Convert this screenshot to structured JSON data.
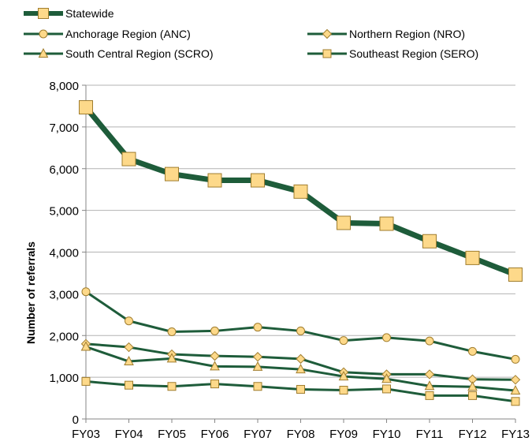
{
  "chart_data": {
    "type": "line",
    "ylabel": "Number of referrals",
    "ylim": [
      0,
      8000
    ],
    "yticks": [
      0,
      1000,
      2000,
      3000,
      4000,
      5000,
      6000,
      7000,
      8000
    ],
    "ytick_labels": [
      "0",
      "1,000",
      "2,000",
      "3,000",
      "4,000",
      "5,000",
      "6,000",
      "7,000",
      "8,000"
    ],
    "grid": "horizontal",
    "legend_position": "top",
    "categories": [
      "FY03",
      "FY04",
      "FY05",
      "FY06",
      "FY07",
      "FY08",
      "FY09",
      "FY10",
      "FY11",
      "FY12",
      "FY13"
    ],
    "series": [
      {
        "name": "Statewide",
        "marker": "square-large",
        "line_color": "#1e5c3a",
        "marker_color": "#fdd98a",
        "values": [
          7470,
          6230,
          5870,
          5720,
          5720,
          5450,
          4700,
          4680,
          4260,
          3860,
          3460
        ]
      },
      {
        "name": "Anchorage Region (ANC)",
        "marker": "circle",
        "line_color": "#1e5c3a",
        "marker_color": "#fdd98a",
        "values": [
          3050,
          2350,
          2090,
          2110,
          2200,
          2110,
          1880,
          1950,
          1870,
          1620,
          1430
        ]
      },
      {
        "name": "Northern Region (NRO)",
        "marker": "diamond",
        "line_color": "#1e5c3a",
        "marker_color": "#fdd98a",
        "values": [
          1800,
          1720,
          1550,
          1510,
          1490,
          1440,
          1120,
          1070,
          1070,
          950,
          940
        ]
      },
      {
        "name": "South Central Region (SCRO)",
        "marker": "triangle",
        "line_color": "#1e5c3a",
        "marker_color": "#fdd98a",
        "values": [
          1730,
          1380,
          1450,
          1260,
          1250,
          1190,
          1020,
          960,
          790,
          770,
          680
        ]
      },
      {
        "name": "Southeast Region (SERO)",
        "marker": "square",
        "line_color": "#1e5c3a",
        "marker_color": "#fdd98a",
        "values": [
          900,
          810,
          780,
          840,
          780,
          710,
          690,
          720,
          560,
          560,
          420
        ]
      }
    ]
  }
}
